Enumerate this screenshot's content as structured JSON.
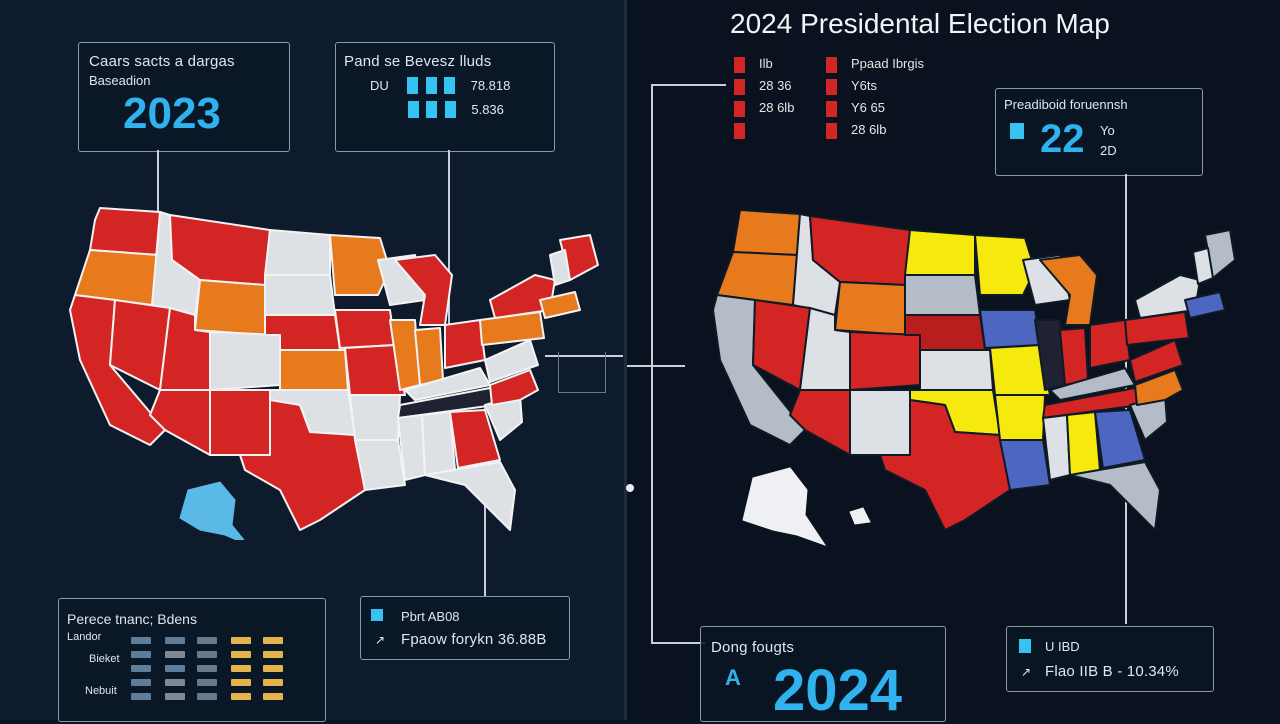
{
  "left": {
    "box_year": {
      "label": "Caars sacts a dargas",
      "sub": "Baseadion",
      "year": "2023"
    },
    "box_stats": {
      "label": "Pand se Bevesz lluds",
      "row1_prefix": "DU",
      "row1_value": "78.818",
      "row2_value": "5.836"
    },
    "box_legend": {
      "label": "Perece tnanc; Bdens",
      "rows": [
        "Landor",
        "Bieket",
        "Nebuit"
      ]
    },
    "box_small": {
      "label": "Pbrt AB08",
      "text": "Fpaow forykn 36.88B"
    }
  },
  "right": {
    "title": "2024 Presidental Election Map",
    "legend_top": {
      "col1": [
        "Ilb",
        "28 36",
        "28 6lb",
        ""
      ],
      "col2": [
        "Ppaad Ibrgis",
        "Y6ts",
        "Y6 65",
        "28 6lb"
      ]
    },
    "box_pct": {
      "label": "Preadiboid foruennsh",
      "value": "22",
      "side_top": "Yo",
      "side_bottom": "2D"
    },
    "box_year": {
      "label": "Dong fougts",
      "letter": "A",
      "year": "2024"
    },
    "box_stats": {
      "line1": "U IBD",
      "line2": "Flao IIB B - 10.34%"
    }
  },
  "colors": {
    "red": "#d42525",
    "orange": "#e87a1e",
    "white": "#dde1e6",
    "yellow": "#f5e90e",
    "blue": "#4d67c0",
    "gray": "#b4bcc8",
    "dark": "#1f2233",
    "alaska_blue": "#5bb9e8"
  }
}
